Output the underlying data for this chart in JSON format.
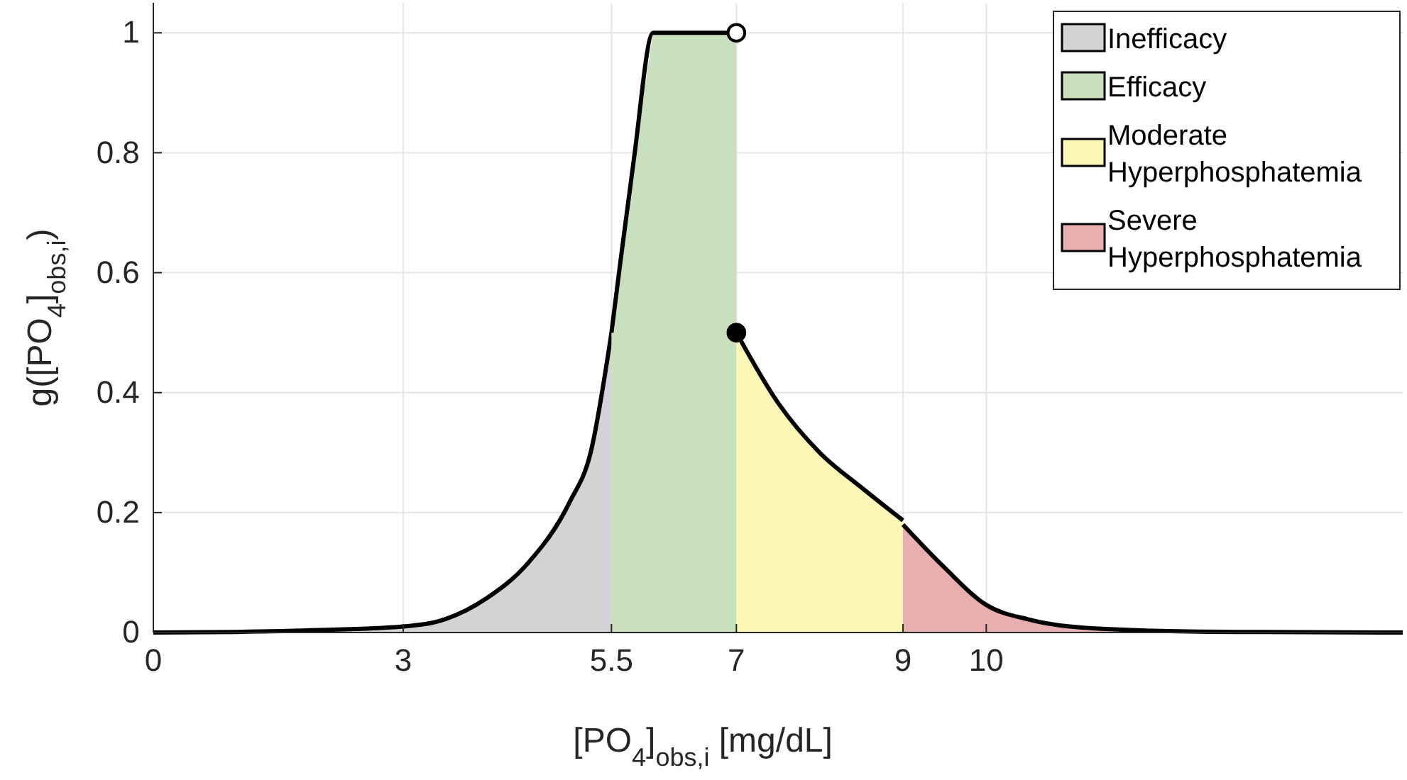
{
  "chart_data": {
    "type": "area",
    "xlabel": "[PO$_{4}$]$_{obs,i}$   [mg/dL]",
    "ylabel": "g([PO$_{4}$]$_{obs,i}$)",
    "xlim": [
      0,
      15
    ],
    "ylim": [
      0,
      1.05
    ],
    "xticks": [
      0,
      3,
      5.5,
      7,
      9,
      10
    ],
    "yticks": [
      0,
      0.2,
      0.4,
      0.6,
      0.8,
      1
    ],
    "grid": true,
    "legend": "top right",
    "series": [
      {
        "name": "Inefficacy",
        "color": "#d3d3d5",
        "x": [
          0,
          1,
          2,
          3,
          3.5,
          4,
          4.5,
          5,
          5.25,
          5.5
        ],
        "values": [
          0,
          0.001,
          0.004,
          0.01,
          0.022,
          0.057,
          0.116,
          0.218,
          0.3,
          0.5
        ]
      },
      {
        "name": "Efficacy",
        "color": "#c8e0bd",
        "x": [
          5.5,
          5.6,
          5.77,
          6,
          7
        ],
        "values": [
          0.5,
          0.61,
          0.79,
          1,
          1
        ]
      },
      {
        "name": "Moderate Hyperphosphatemia",
        "color": "#fdf6b6",
        "x": [
          7,
          7.5,
          8,
          8.5,
          9
        ],
        "values": [
          0.5,
          0.383,
          0.3,
          0.242,
          0.187
        ]
      },
      {
        "name": "Severe Hyperphosphatemia",
        "color": "#e9aeae",
        "x": [
          9,
          9.5,
          10,
          10.5,
          11,
          12,
          13,
          15
        ],
        "values": [
          0.18,
          0.108,
          0.046,
          0.022,
          0.01,
          0.003,
          0.001,
          0
        ]
      },
      {
        "type": "scatter",
        "marker": "circle",
        "color": "#ffffff",
        "x": [
          7
        ],
        "values": [
          1
        ]
      },
      {
        "type": "scatter",
        "marker": "circle",
        "color": "#000000",
        "x": [
          7
        ],
        "values": [
          0.5
        ]
      }
    ]
  }
}
